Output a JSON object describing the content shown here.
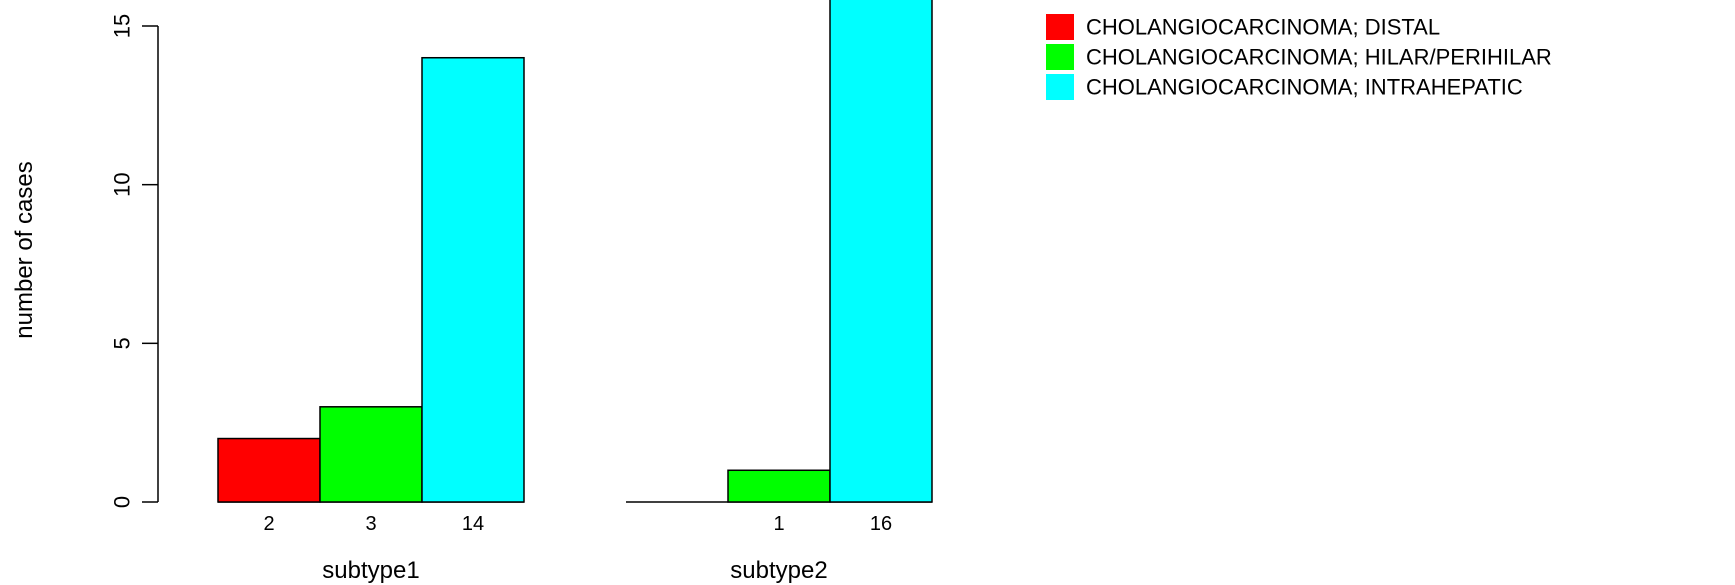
{
  "chart_data": {
    "type": "bar",
    "ylabel": "number of cases",
    "ylim": [
      0,
      15
    ],
    "yticks": [
      0,
      5,
      10,
      15
    ],
    "groups": [
      "subtype1",
      "subtype2"
    ],
    "series": [
      {
        "name": "CHOLANGIOCARCINOMA; DISTAL",
        "color": "#ff0000",
        "values": [
          2,
          0
        ],
        "labels": [
          "2",
          ""
        ]
      },
      {
        "name": "CHOLANGIOCARCINOMA; HILAR/PERIHILAR",
        "color": "#00ff00",
        "values": [
          3,
          1
        ],
        "labels": [
          "3",
          "1"
        ]
      },
      {
        "name": "CHOLANGIOCARCINOMA; INTRAHEPATIC",
        "color": "#00ffff",
        "values": [
          14,
          16
        ],
        "labels": [
          "14",
          "16"
        ]
      }
    ],
    "legend_position": "top-right",
    "grid": false
  }
}
